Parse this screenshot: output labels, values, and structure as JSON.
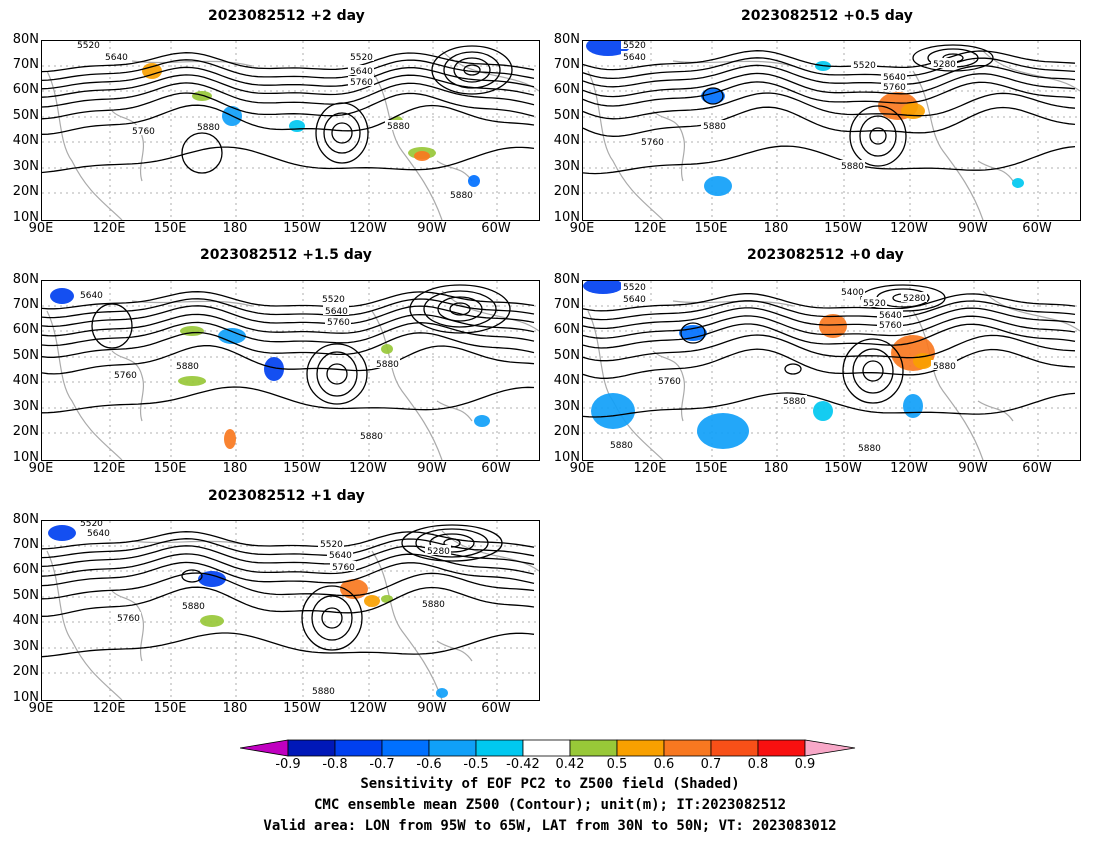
{
  "panels": [
    {
      "id": "p2",
      "title": "2023082512  +2 day",
      "labels": [
        {
          "t": "5520"
        },
        {
          "t": "5640"
        },
        {
          "t": "5520"
        },
        {
          "t": "5640"
        },
        {
          "t": "5760"
        },
        {
          "t": "5760"
        },
        {
          "t": "5880"
        },
        {
          "t": "5880"
        },
        {
          "t": "5880"
        }
      ]
    },
    {
      "id": "p05",
      "title": "2023082512  +0.5 day",
      "labels": [
        {
          "t": "5520"
        },
        {
          "t": "5640"
        },
        {
          "t": "5520"
        },
        {
          "t": "5280"
        },
        {
          "t": "5640"
        },
        {
          "t": "5760"
        },
        {
          "t": "5880"
        },
        {
          "t": "5760"
        },
        {
          "t": "5880"
        }
      ]
    },
    {
      "id": "p15",
      "title": "2023082512  +1.5 day",
      "labels": [
        {
          "t": "5640"
        },
        {
          "t": "5520"
        },
        {
          "t": "5640"
        },
        {
          "t": "5760"
        },
        {
          "t": "5760"
        },
        {
          "t": "5880"
        },
        {
          "t": "5880"
        },
        {
          "t": "5880"
        }
      ]
    },
    {
      "id": "p0",
      "title": "2023082512  +0 day",
      "labels": [
        {
          "t": "5520"
        },
        {
          "t": "5640"
        },
        {
          "t": "5400"
        },
        {
          "t": "5280"
        },
        {
          "t": "5520"
        },
        {
          "t": "5640"
        },
        {
          "t": "5760"
        },
        {
          "t": "5760"
        },
        {
          "t": "5880"
        },
        {
          "t": "5880"
        },
        {
          "t": "5880"
        },
        {
          "t": "5880"
        }
      ]
    },
    {
      "id": "p1",
      "title": "2023082512  +1 day",
      "labels": [
        {
          "t": "5520"
        },
        {
          "t": "5640"
        },
        {
          "t": "5520"
        },
        {
          "t": "5640"
        },
        {
          "t": "5760"
        },
        {
          "t": "5280"
        },
        {
          "t": "5880"
        },
        {
          "t": "5760"
        },
        {
          "t": "5880"
        },
        {
          "t": "5880"
        }
      ]
    }
  ],
  "lat_ticks": [
    "80N",
    "70N",
    "60N",
    "50N",
    "40N",
    "30N",
    "20N",
    "10N"
  ],
  "lon_ticks": [
    "90E",
    "120E",
    "150E",
    "180",
    "150W",
    "120W",
    "90W",
    "60W"
  ],
  "colorbar": {
    "colors": [
      "#c000c0",
      "#0018b8",
      "#0040f0",
      "#0070ff",
      "#10a0f8",
      "#00c8f0",
      "#ffffff",
      "#98c838",
      "#f8a000",
      "#f87820",
      "#f85018",
      "#f81010",
      "#f8a8c8"
    ],
    "labels": [
      "-0.9",
      "-0.8",
      "-0.7",
      "-0.6",
      "-0.5",
      "-0.42",
      "0.42",
      "0.5",
      "0.6",
      "0.7",
      "0.8",
      "0.9"
    ]
  },
  "caption": {
    "line1": "Sensitivity of EOF PC2 to Z500 field (Shaded)",
    "line2": "CMC ensemble mean Z500 (Contour); unit(m); IT:2023082512",
    "line3": "Valid area: LON from 95W to 65W, LAT from 30N to 50N; VT: 2023083012"
  }
}
